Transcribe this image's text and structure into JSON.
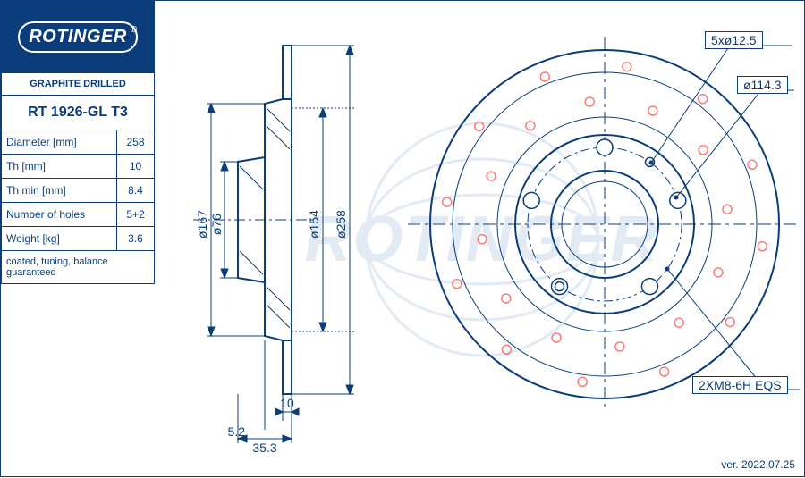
{
  "logo": {
    "text": "ROTINGER"
  },
  "watermark": "ROTINGER",
  "header": {
    "category": "GRAPHITE DRILLED",
    "part_number": "RT 1926-GL T3"
  },
  "specs": [
    {
      "label": "Diameter [mm]",
      "value": "258"
    },
    {
      "label": "Th [mm]",
      "value": "10"
    },
    {
      "label": "Th min [mm]",
      "value": "8.4"
    },
    {
      "label": "Number of holes",
      "value": "5+2"
    },
    {
      "label": "Weight [kg]",
      "value": "3.6"
    }
  ],
  "notes": "coated, tuning, balance guaranteed",
  "side_view": {
    "dimensions": {
      "d167": "ø167",
      "d76": "ø76",
      "d154": "ø154",
      "d258": "ø258",
      "width_10": "10",
      "offset_5_2": "5.2",
      "offset_35_3": "35.3"
    },
    "stroke": "#0a3d7a",
    "centerline_color": "#0a3d7a"
  },
  "front_view": {
    "callouts": {
      "bolt_pattern": "5xø12.5",
      "pcd": "ø114.3",
      "thread": "2XM8-6H  EQS"
    },
    "outer_d": 258,
    "inner_hub": 76,
    "bolt_circle": 114.3,
    "drilled_hole_color": "#ff7a7a",
    "n_drilled_per_ring": 12,
    "stroke": "#0a3d7a"
  },
  "version": "ver. 2022.07.25",
  "colors": {
    "primary": "#0a3d7a",
    "bg": "#ffffff",
    "watermark": "#e2ebf4",
    "drill_hole": "#ff7a7a"
  }
}
